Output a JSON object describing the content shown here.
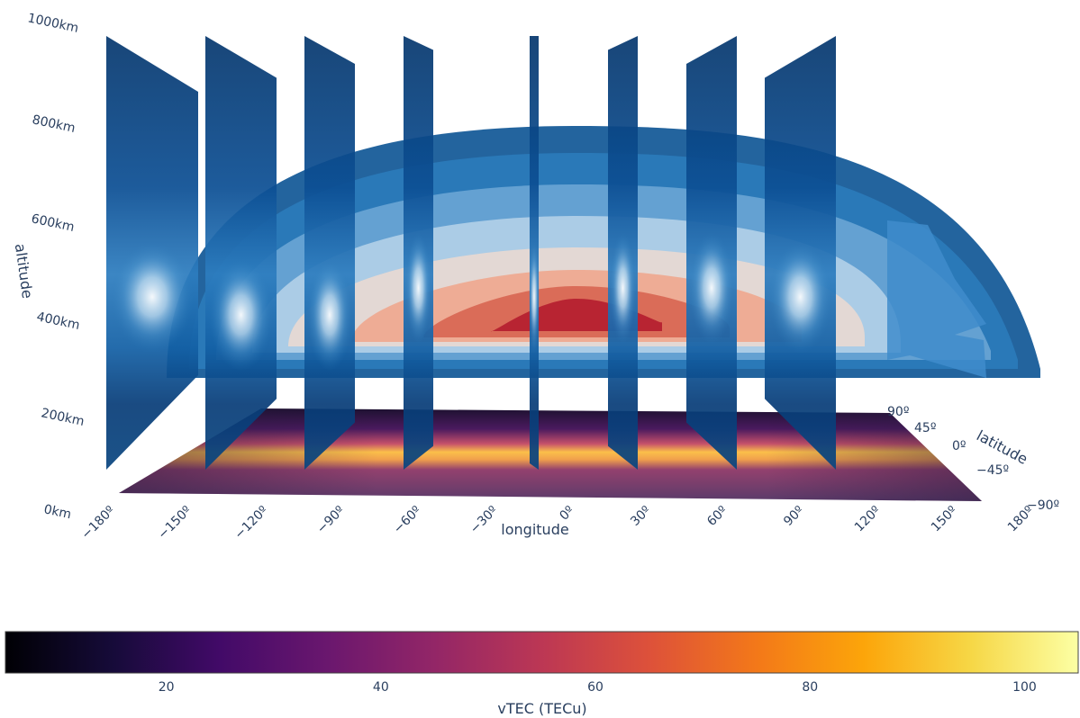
{
  "chart_data": {
    "type": "3d-volume-slices",
    "axes": {
      "x": {
        "label": "longitude",
        "ticks": [
          "−180º",
          "−150º",
          "−120º",
          "−90º",
          "−60º",
          "−30º",
          "0º",
          "30º",
          "60º",
          "90º",
          "120º",
          "150º",
          "180º"
        ],
        "range": [
          -180,
          180
        ]
      },
      "y": {
        "label": "latitude",
        "ticks": [
          "−90º",
          "−45º",
          "0º",
          "45º",
          "90º"
        ],
        "range": [
          -90,
          90
        ]
      },
      "z": {
        "label": "altitude",
        "ticks": [
          "0km",
          "200km",
          "400km",
          "600km",
          "800km",
          "1000km"
        ],
        "range": [
          0,
          1000
        ]
      }
    },
    "slice_longitudes": [
      -180,
      -135,
      -90,
      -45,
      0,
      45,
      90,
      135
    ],
    "surface": {
      "peak_longitude": 10,
      "peak_altitude_km": 350,
      "top_altitude_km": 800
    },
    "floor_heatmap": {
      "peak_vtec": 100,
      "equatorial_band_latitude": 0
    },
    "colorbar": {
      "title": "vTEC (TECu)",
      "ticks": [
        "20",
        "40",
        "60",
        "80",
        "100"
      ],
      "tick_values": [
        20,
        40,
        60,
        80,
        100
      ],
      "range": [
        5,
        105
      ],
      "colorscale": [
        "#000004",
        "#160b39",
        "#420a68",
        "#6a176e",
        "#932667",
        "#bc3754",
        "#dd513a",
        "#f37819",
        "#fca50a",
        "#f6d746",
        "#fcffa4"
      ]
    },
    "slice_colorscale": [
      "#052c5c",
      "#0a4a8a",
      "#1a6cb0",
      "#4f9bd0",
      "#a6cfe8",
      "#f4f8fc"
    ],
    "surface_colorscale": [
      "#0b5394",
      "#2b7bba",
      "#6fa8d6",
      "#b7d4ea",
      "#ecd9d0",
      "#f0a58a",
      "#d6604d",
      "#b2182b"
    ]
  }
}
